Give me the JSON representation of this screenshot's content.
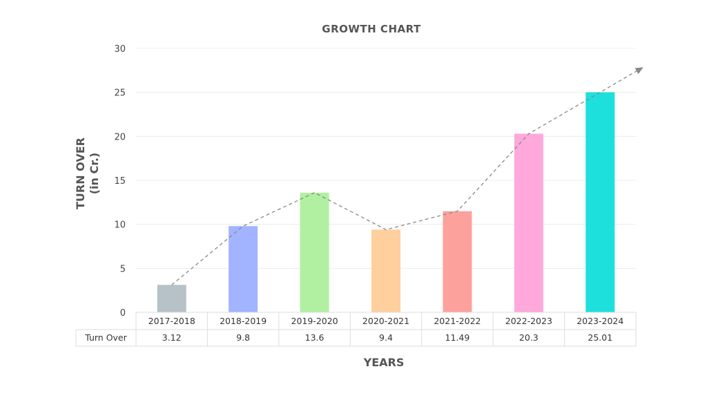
{
  "chart_data": {
    "type": "bar",
    "title": "GROWTH CHART",
    "xlabel": "YEARS",
    "ylabel_line1": "TURN OVER",
    "ylabel_line2": "(in Cr.)",
    "ylim": [
      0,
      30
    ],
    "yticks": [
      0,
      5,
      10,
      15,
      20,
      25,
      30
    ],
    "grid": true,
    "categories": [
      "2017-2018",
      "2018-2019",
      "2019-2020",
      "2020-2021",
      "2021-2022",
      "2022-2023",
      "2023-2024"
    ],
    "series": [
      {
        "name": "Turn Over",
        "values": [
          3.12,
          9.8,
          13.6,
          9.4,
          11.49,
          20.3,
          25.01
        ],
        "labels": [
          "3.12",
          "9.8",
          "13.6",
          "9.4",
          "11.49",
          "20.3",
          "25.01"
        ]
      }
    ],
    "colors": [
      "#b6c2c8",
      "#a2b4ff",
      "#b1f0a1",
      "#ffcf9e",
      "#fda19d",
      "#ffa8dc",
      "#1de0dc"
    ],
    "trend_line": "dashed-arrow",
    "trend_color": "#888888",
    "data_table": true
  }
}
